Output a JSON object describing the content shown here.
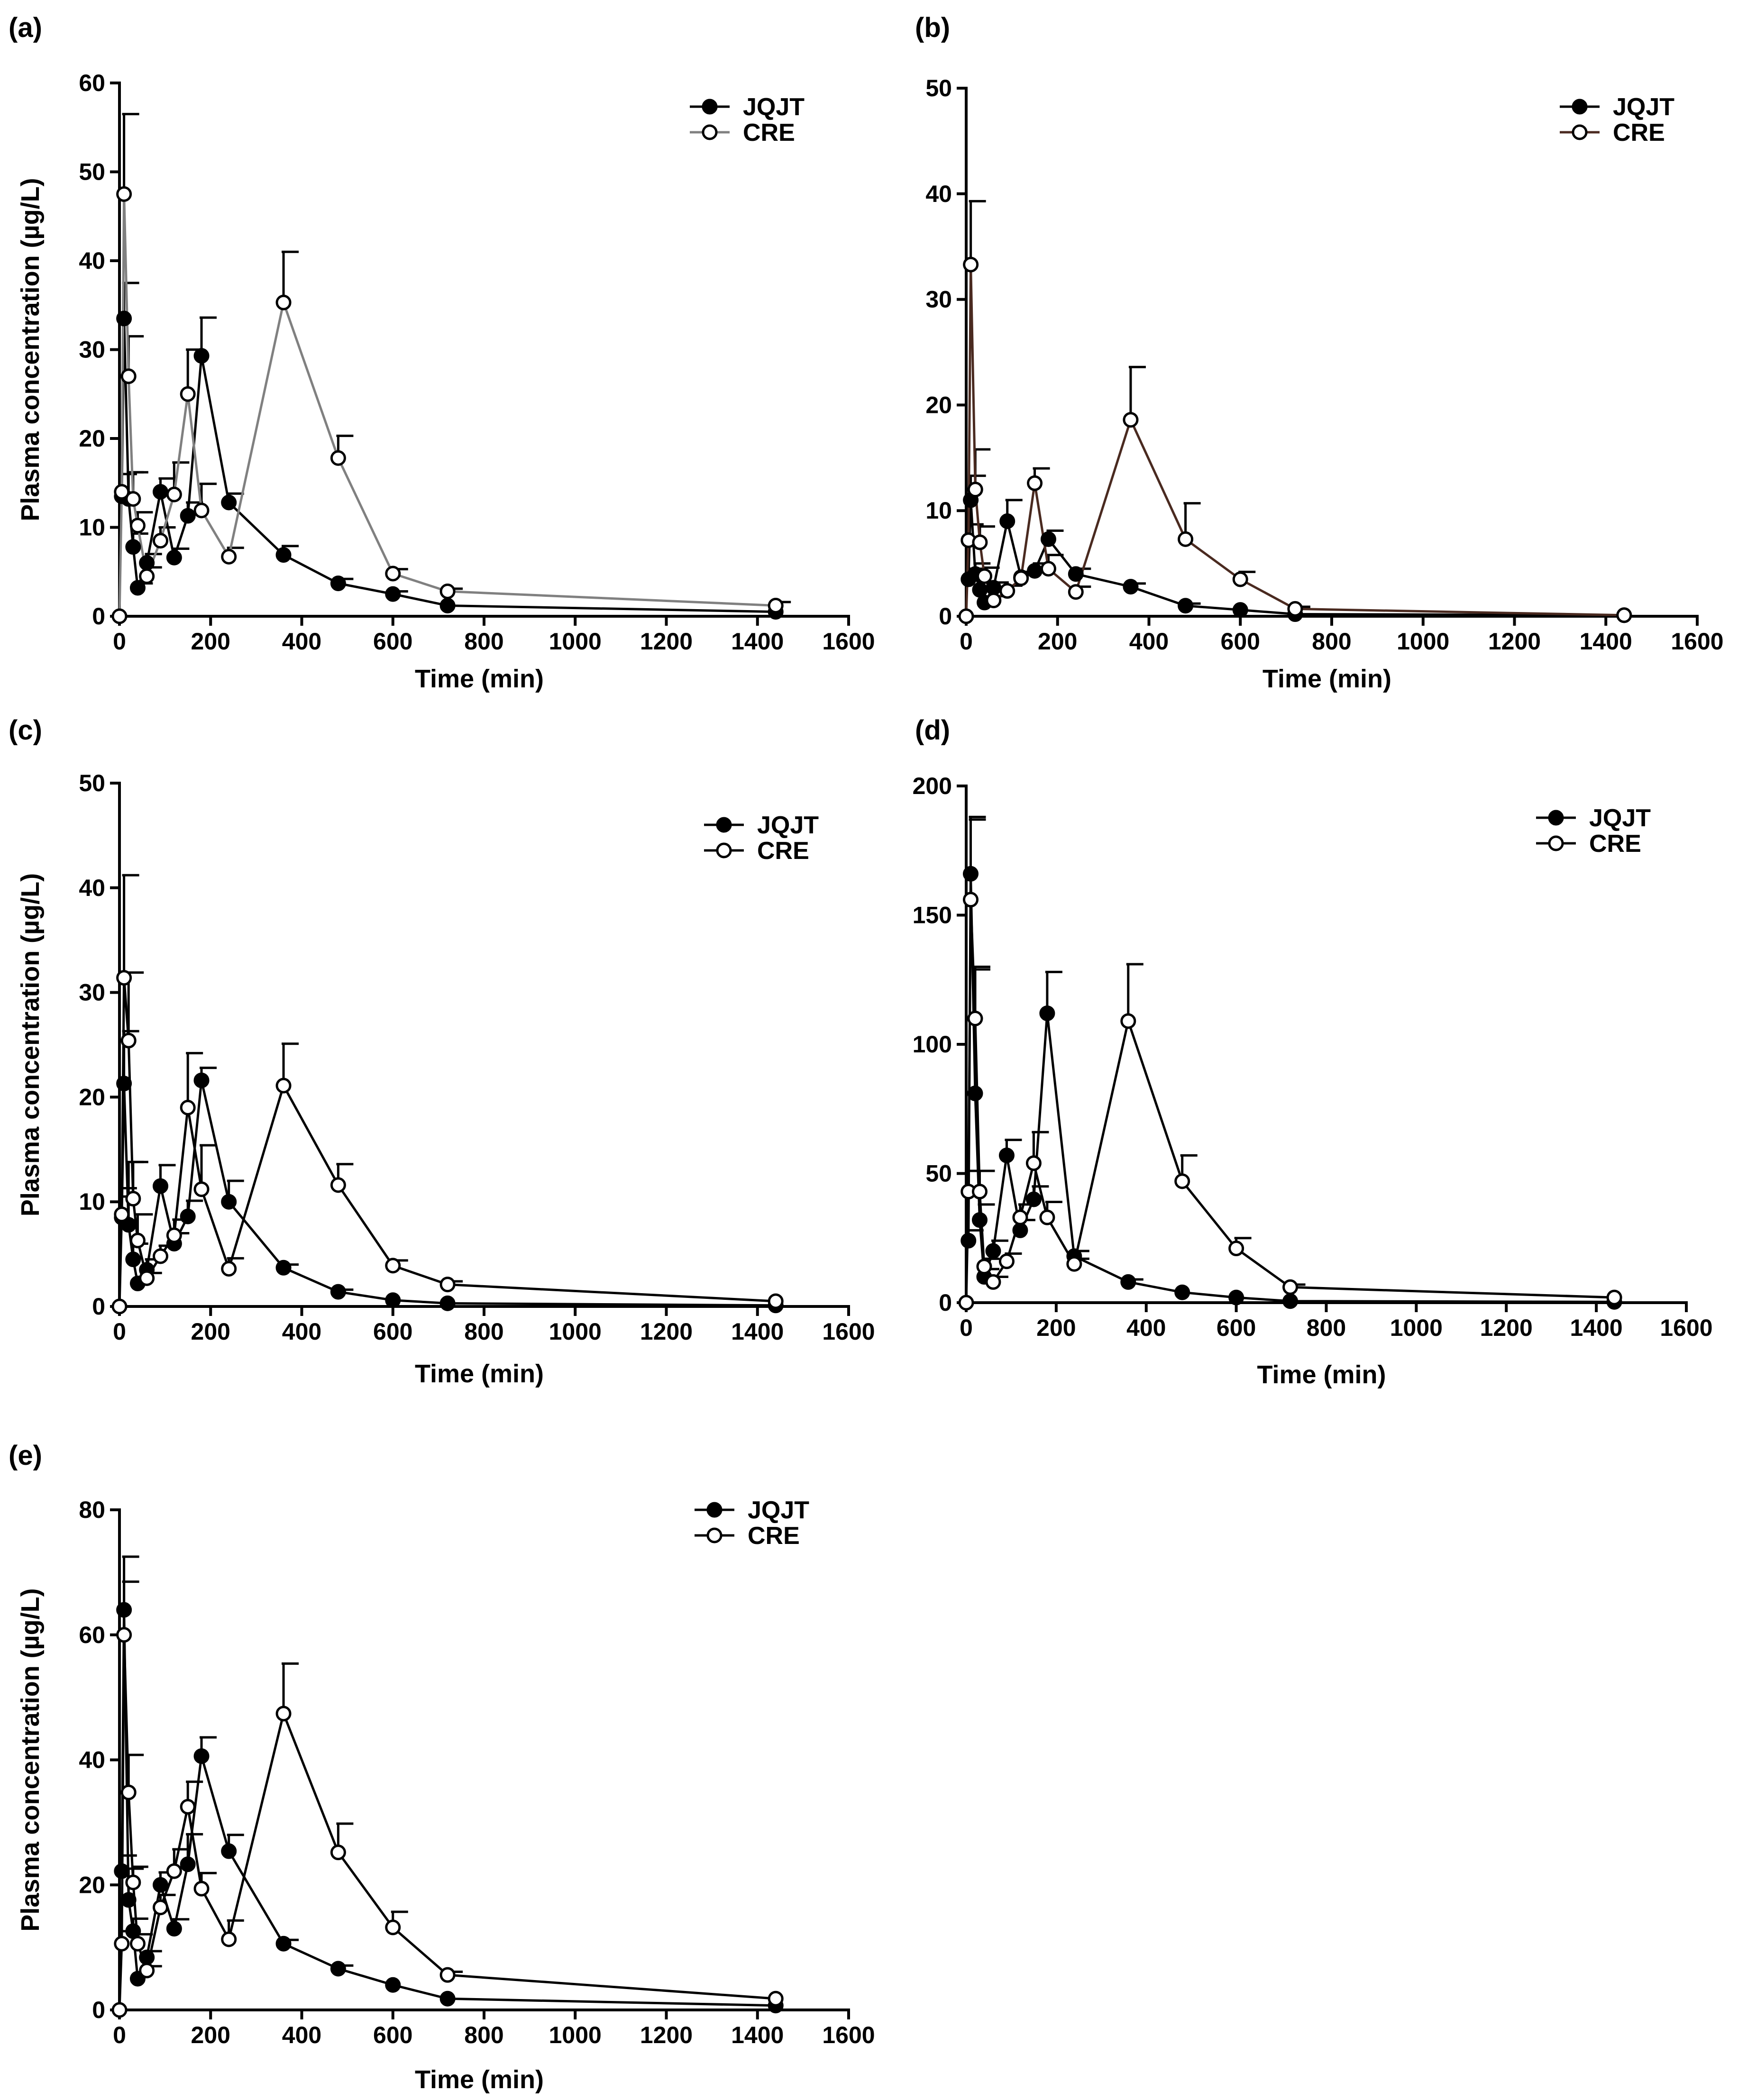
{
  "chart_data": [
    {
      "type": "line",
      "panel": "(a)",
      "xlabel": "Time (min)",
      "ylabel": "Plasma concentration (µg/L)",
      "xlim": [
        0,
        1600
      ],
      "ylim": [
        0,
        60
      ],
      "xticks": [
        0,
        200,
        400,
        600,
        800,
        1000,
        1200,
        1400,
        1600
      ],
      "yticks": [
        0,
        10,
        20,
        30,
        40,
        50,
        60
      ],
      "legend_position": "top-right",
      "colors": {
        "jqjt": "#000000",
        "cre": "#808080"
      },
      "series": [
        {
          "name": "JQJT",
          "marker": "filled",
          "x": [
            5,
            10,
            20,
            30,
            40,
            60,
            90,
            120,
            150,
            180,
            240,
            360,
            480,
            600,
            720,
            1440
          ],
          "y": [
            13.5,
            33.5,
            13.2,
            7.8,
            3.2,
            6,
            14,
            6.6,
            11.3,
            29.3,
            12.8,
            6.9,
            3.7,
            2.5,
            1.2,
            0.5
          ],
          "err": [
            2.5,
            4,
            3,
            1.5,
            0.5,
            1,
            1.5,
            1,
            1.5,
            4.3,
            1,
            1,
            0.5,
            0.3,
            0.2,
            0.1
          ]
        },
        {
          "name": "CRE",
          "marker": "open",
          "x": [
            0,
            5,
            10,
            20,
            30,
            40,
            60,
            90,
            120,
            150,
            180,
            240,
            360,
            480,
            600,
            720,
            1440
          ],
          "y": [
            0,
            14,
            47.5,
            27,
            13.2,
            10.2,
            4.5,
            8.5,
            13.7,
            25,
            11.9,
            6.7,
            35.3,
            17.8,
            4.8,
            2.8,
            1.2
          ],
          "err": [
            0,
            2,
            9,
            4.5,
            3,
            1.5,
            1,
            1.5,
            3.6,
            5,
            3,
            1,
            5.7,
            2.5,
            0.5,
            0.3,
            0.4
          ]
        }
      ]
    },
    {
      "type": "line",
      "panel": "(b)",
      "xlabel": "Time (min)",
      "ylabel": "",
      "xlim": [
        0,
        1600
      ],
      "ylim": [
        0,
        50
      ],
      "xticks": [
        0,
        200,
        400,
        600,
        800,
        1000,
        1200,
        1400,
        1600
      ],
      "yticks": [
        0,
        10,
        20,
        30,
        40,
        50
      ],
      "legend_position": "top-right",
      "colors": {
        "jqjt": "#000000",
        "cre": "#4a2a20"
      },
      "series": [
        {
          "name": "JQJT",
          "marker": "filled",
          "x": [
            5,
            10,
            20,
            30,
            40,
            60,
            90,
            120,
            150,
            180,
            240,
            360,
            480,
            600,
            720,
            1440
          ],
          "y": [
            3.5,
            11,
            4,
            2.5,
            1.3,
            2.7,
            9,
            3.7,
            4.3,
            7.3,
            4,
            2.8,
            1,
            0.6,
            0.2,
            0.1
          ],
          "err": [
            1,
            2.3,
            1,
            0.8,
            0.3,
            0.5,
            2,
            0.5,
            0.7,
            0.8,
            0.5,
            0.3,
            0.2,
            0.1,
            0.05,
            0.05
          ]
        },
        {
          "name": "CRE",
          "marker": "open",
          "x": [
            0,
            5,
            10,
            20,
            30,
            40,
            60,
            90,
            120,
            150,
            180,
            240,
            360,
            480,
            600,
            720,
            1440
          ],
          "y": [
            0,
            7.2,
            33.3,
            12,
            7,
            3.8,
            1.5,
            2.4,
            3.6,
            12.6,
            4.5,
            2.3,
            18.6,
            7.3,
            3.5,
            0.7,
            0.1
          ],
          "err": [
            0,
            1.5,
            6,
            3.8,
            1.5,
            0.8,
            0.4,
            0.5,
            0.5,
            1.4,
            1.3,
            0.5,
            5,
            3.4,
            0.7,
            0.2,
            0.05
          ]
        }
      ]
    },
    {
      "type": "line",
      "panel": "(c)",
      "xlabel": "Time (min)",
      "ylabel": "Plasma concentration (µg/L)",
      "xlim": [
        0,
        1600
      ],
      "ylim": [
        0,
        50
      ],
      "xticks": [
        0,
        200,
        400,
        600,
        800,
        1000,
        1200,
        1400,
        1600
      ],
      "yticks": [
        0,
        10,
        20,
        30,
        40,
        50
      ],
      "legend_position": "top-right",
      "colors": {
        "jqjt": "#000000",
        "cre": "#000000"
      },
      "series": [
        {
          "name": "JQJT",
          "marker": "filled",
          "x": [
            5,
            10,
            20,
            30,
            40,
            60,
            90,
            120,
            150,
            180,
            240,
            360,
            480,
            600,
            720,
            1440
          ],
          "y": [
            8.5,
            21.3,
            7.8,
            4.5,
            2.2,
            3.5,
            11.5,
            6,
            8.6,
            21.6,
            10,
            3.7,
            1.4,
            0.6,
            0.3,
            0.1
          ],
          "err": [
            2,
            5,
            6,
            1.5,
            0.5,
            1,
            2,
            1,
            1.5,
            1.2,
            2,
            0.3,
            0.2,
            0.1,
            0.05,
            0.05
          ]
        },
        {
          "name": "CRE",
          "marker": "open",
          "x": [
            0,
            5,
            10,
            20,
            30,
            40,
            60,
            90,
            120,
            150,
            180,
            240,
            360,
            480,
            600,
            720,
            1440
          ],
          "y": [
            0,
            8.8,
            31.4,
            25.4,
            10.3,
            6.3,
            2.7,
            4.8,
            6.8,
            19,
            11.2,
            3.6,
            21.1,
            11.6,
            3.9,
            2.1,
            0.5
          ],
          "err": [
            0,
            2.5,
            9.8,
            6.5,
            3.5,
            2.5,
            0.5,
            1,
            1.5,
            5.2,
            4.2,
            1,
            4,
            2,
            0.5,
            0.3,
            0.1
          ]
        }
      ]
    },
    {
      "type": "line",
      "panel": "(d)",
      "xlabel": "Time (min)",
      "ylabel": "",
      "xlim": [
        0,
        1600
      ],
      "ylim": [
        0,
        200
      ],
      "xticks": [
        0,
        200,
        400,
        600,
        800,
        1000,
        1200,
        1400,
        1600
      ],
      "yticks": [
        0,
        50,
        100,
        150,
        200
      ],
      "legend_position": "top-right",
      "colors": {
        "jqjt": "#000000",
        "cre": "#000000"
      },
      "series": [
        {
          "name": "JQJT",
          "marker": "filled",
          "x": [
            5,
            10,
            20,
            30,
            40,
            60,
            90,
            120,
            150,
            180,
            240,
            360,
            480,
            600,
            720,
            1440
          ],
          "y": [
            24,
            166,
            81,
            32,
            10,
            20,
            57,
            28,
            40,
            112,
            18,
            8,
            4,
            2,
            0.6,
            0.3
          ],
          "err": [
            4,
            22,
            48,
            6,
            3,
            4,
            6,
            4,
            5,
            16,
            2,
            1,
            0.5,
            0.3,
            0.1,
            0.1
          ]
        },
        {
          "name": "CRE",
          "marker": "open",
          "x": [
            0,
            5,
            10,
            20,
            30,
            40,
            60,
            90,
            120,
            150,
            180,
            240,
            360,
            480,
            600,
            720,
            1440
          ],
          "y": [
            0,
            43,
            156,
            110,
            43,
            14,
            8,
            16,
            33,
            54,
            33,
            15,
            109,
            47,
            21,
            6,
            2
          ],
          "err": [
            0,
            8,
            31,
            20,
            8,
            3,
            2,
            3,
            5,
            12,
            6,
            2,
            22,
            10,
            4,
            1,
            0.5
          ]
        }
      ]
    },
    {
      "type": "line",
      "panel": "(e)",
      "xlabel": "Time (min)",
      "ylabel": "Plasma concentration (µg/L)",
      "xlim": [
        0,
        1600
      ],
      "ylim": [
        0,
        80
      ],
      "xticks": [
        0,
        200,
        400,
        600,
        800,
        1000,
        1200,
        1400,
        1600
      ],
      "yticks": [
        0,
        20,
        40,
        60,
        80
      ],
      "legend_position": "top-right",
      "colors": {
        "jqjt": "#000000",
        "cre": "#000000"
      },
      "series": [
        {
          "name": "JQJT",
          "marker": "filled",
          "x": [
            5,
            10,
            20,
            30,
            40,
            60,
            90,
            120,
            150,
            180,
            240,
            360,
            480,
            600,
            720,
            1440
          ],
          "y": [
            22.2,
            64,
            17.6,
            12.6,
            5,
            8.4,
            20,
            13,
            23.3,
            40.6,
            25.4,
            10.6,
            6.6,
            4,
            1.8,
            0.7
          ],
          "err": [
            2.5,
            8.5,
            5,
            2,
            0.7,
            1,
            2,
            1.5,
            4.8,
            3,
            2.6,
            0.6,
            0.5,
            0.3,
            0.2,
            0.1
          ]
        },
        {
          "name": "CRE",
          "marker": "open",
          "x": [
            0,
            5,
            10,
            20,
            30,
            40,
            60,
            90,
            120,
            150,
            180,
            240,
            360,
            480,
            600,
            720,
            1440
          ],
          "y": [
            0,
            10.6,
            60,
            34.8,
            20.4,
            10.6,
            6.3,
            16.4,
            22.2,
            32.5,
            19.4,
            11.3,
            47.4,
            25.2,
            13.2,
            5.6,
            1.8
          ],
          "err": [
            0,
            2,
            8.5,
            6,
            2.5,
            1.5,
            0.7,
            2,
            3.5,
            4,
            2.5,
            3,
            8,
            4.6,
            2.5,
            0.5,
            0.3
          ]
        }
      ]
    }
  ]
}
